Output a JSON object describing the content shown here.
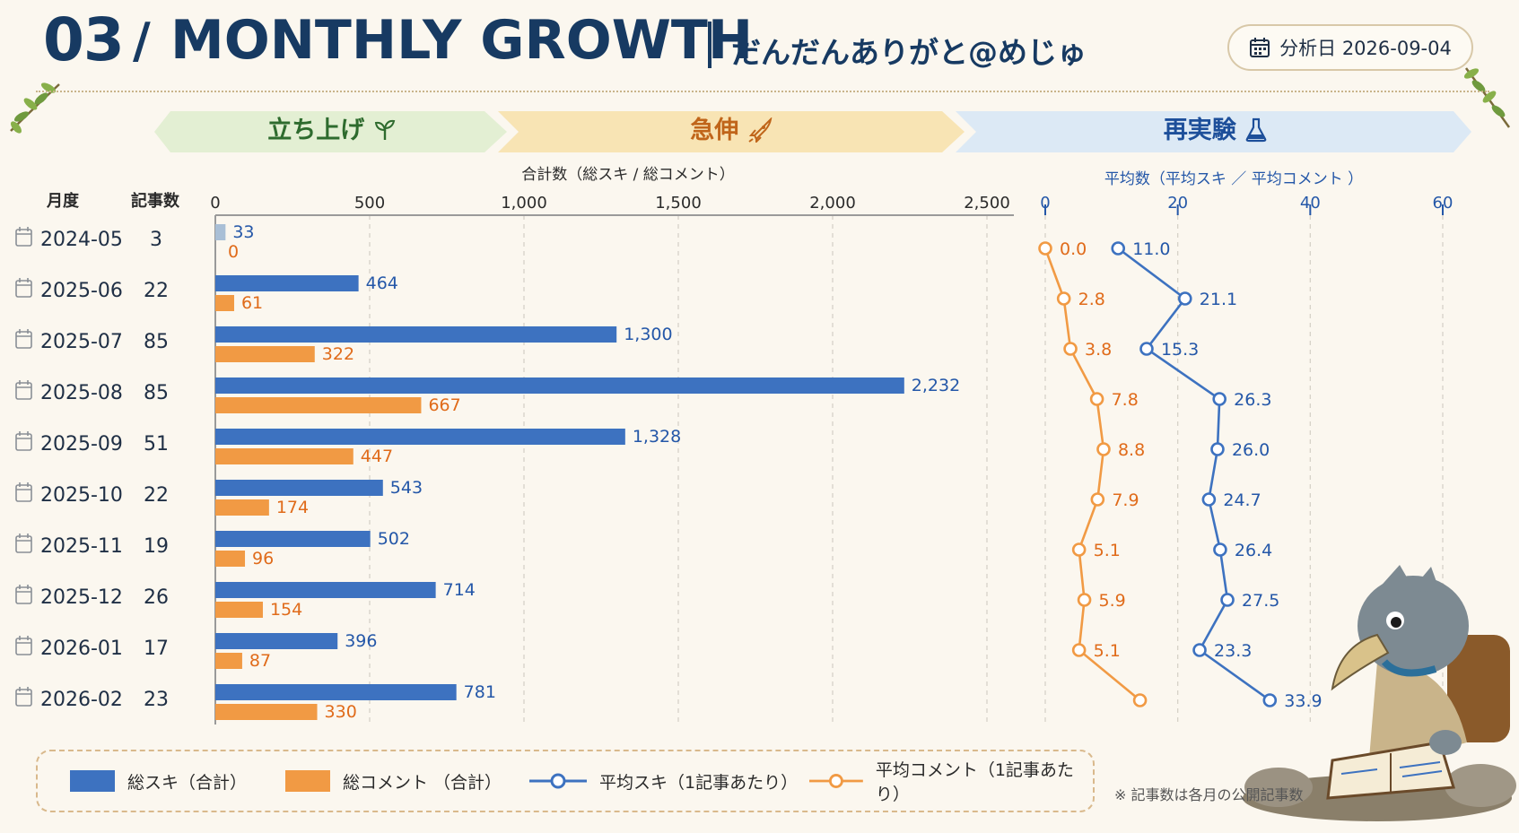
{
  "header": {
    "number": "03",
    "slash": "/",
    "title": "MONTHLY GROWTH",
    "subtitle": "だんだんありがと@めじゅ",
    "date_label": "分析日 2026-09-04"
  },
  "phases": [
    {
      "label": "立ち上げ",
      "icon": "sprout-icon",
      "color": "#e3efd3",
      "text_color": "#2e6b2e"
    },
    {
      "label": "急伸",
      "icon": "rocket-icon",
      "color": "#f8e4b4",
      "text_color": "#c0651a"
    },
    {
      "label": "再実験",
      "icon": "flask-icon",
      "color": "#dce9f5",
      "text_color": "#1d4f9a"
    }
  ],
  "columns": {
    "month": "月度",
    "count": "記事数"
  },
  "bar_axis_title": "合計数（総スキ / 総コメント）",
  "line_axis_title": "平均数（平均スキ ／ 平均コメント ）",
  "legend": {
    "likes_total": "総スキ（合計）",
    "comments_total": "総コメント （合計）",
    "avg_likes": "平均スキ（1記事あたり）",
    "avg_comments": "平均コメント（1記事あたり）"
  },
  "footnote": "※ 記事数は各月の公開記事数",
  "colors": {
    "blue": "#3d72c0",
    "orange": "#f19a44",
    "blue_text": "#2457a8",
    "orange_text": "#e06b1a",
    "first_bar": "#a9bfd6"
  },
  "chart_data": {
    "type": "bar",
    "categories": [
      "2024-05",
      "2025-06",
      "2025-07",
      "2025-08",
      "2025-09",
      "2025-10",
      "2025-11",
      "2025-12",
      "2026-01",
      "2026-02"
    ],
    "article_counts": [
      3,
      22,
      85,
      85,
      51,
      22,
      19,
      26,
      17,
      23
    ],
    "bar_xlim": [
      0,
      2500
    ],
    "bar_ticks": [
      "0",
      "500",
      "1,000",
      "1,500",
      "2,000",
      "2,500"
    ],
    "series": [
      {
        "name": "総スキ（合計）",
        "values": [
          33,
          464,
          1300,
          2232,
          1328,
          543,
          502,
          714,
          396,
          781
        ],
        "labels": [
          "33",
          "464",
          "1,300",
          "2,232",
          "1,328",
          "543",
          "502",
          "714",
          "396",
          "781"
        ]
      },
      {
        "name": "総コメント （合計）",
        "values": [
          0,
          61,
          322,
          667,
          447,
          174,
          96,
          154,
          87,
          330
        ],
        "labels": [
          "0",
          "61",
          "322",
          "667",
          "447",
          "174",
          "96",
          "154",
          "87",
          "330"
        ]
      }
    ],
    "line_xlim": [
      0,
      60
    ],
    "line_ticks": [
      "0",
      "20",
      "40",
      "60"
    ],
    "line_series": [
      {
        "name": "平均スキ（1記事あたり）",
        "values": [
          11.0,
          21.1,
          15.3,
          26.3,
          26.0,
          24.7,
          26.4,
          27.5,
          23.3,
          33.9
        ],
        "labels": [
          "11.0",
          "21.1",
          "15.3",
          "26.3",
          "26.0",
          "24.7",
          "26.4",
          "27.5",
          "23.3",
          "33.9"
        ]
      },
      {
        "name": "平均コメント（1記事あたり）",
        "values": [
          0.0,
          2.8,
          3.8,
          7.8,
          8.8,
          7.9,
          5.1,
          5.9,
          5.1,
          14.3
        ],
        "labels": [
          "0.0",
          "2.8",
          "3.8",
          "7.8",
          "8.8",
          "7.9",
          "5.1",
          "5.9",
          "5.1",
          ""
        ]
      }
    ],
    "grid": true
  }
}
